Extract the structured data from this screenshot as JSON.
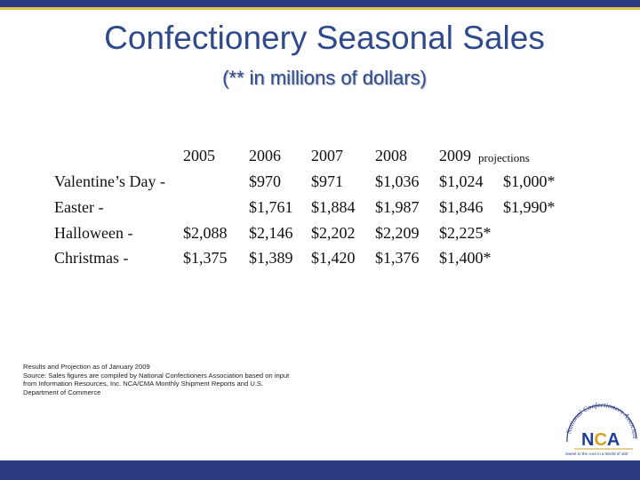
{
  "title": "Confectionery Seasonal Sales",
  "subtitle": "(** in millions of dollars)",
  "table": {
    "headers": [
      "2005",
      "2006",
      "2007",
      "2008",
      "2009",
      "projections"
    ],
    "rows": [
      {
        "label": "Valentine’s Day -",
        "values": [
          "",
          "$970",
          "$971",
          "$1,036",
          "$1,024",
          "$1,000*"
        ]
      },
      {
        "label": "Easter -",
        "values": [
          "",
          "$1,761",
          "$1,884",
          "$1,987",
          "$1,846",
          "$1,990*"
        ]
      },
      {
        "label": "Halloween -",
        "values": [
          "$2,088",
          "$2,146",
          "$2,202",
          "$2,209",
          "$2,225*",
          ""
        ]
      },
      {
        "label": "Christmas -",
        "values": [
          "$1,375",
          "$1,389",
          "$1,420",
          "$1,376",
          "$1,400*",
          ""
        ]
      }
    ]
  },
  "footnote": "Results and Projection as of January 2009\nSource: Sales figures are compiled by National Confectioners Association based on input from Information Resources, Inc. NCA/CMA Monthly Shipment Reports and U.S. Department of Commerce",
  "logo": {
    "text": "NCA",
    "arc_text": "National Confectioners Association",
    "tagline": "Sweet to the core in a World of 150",
    "colors": {
      "n": "#1f3f9a",
      "c": "#d4a020",
      "a": "#1f3f9a",
      "ring": "#2a3b84"
    }
  }
}
